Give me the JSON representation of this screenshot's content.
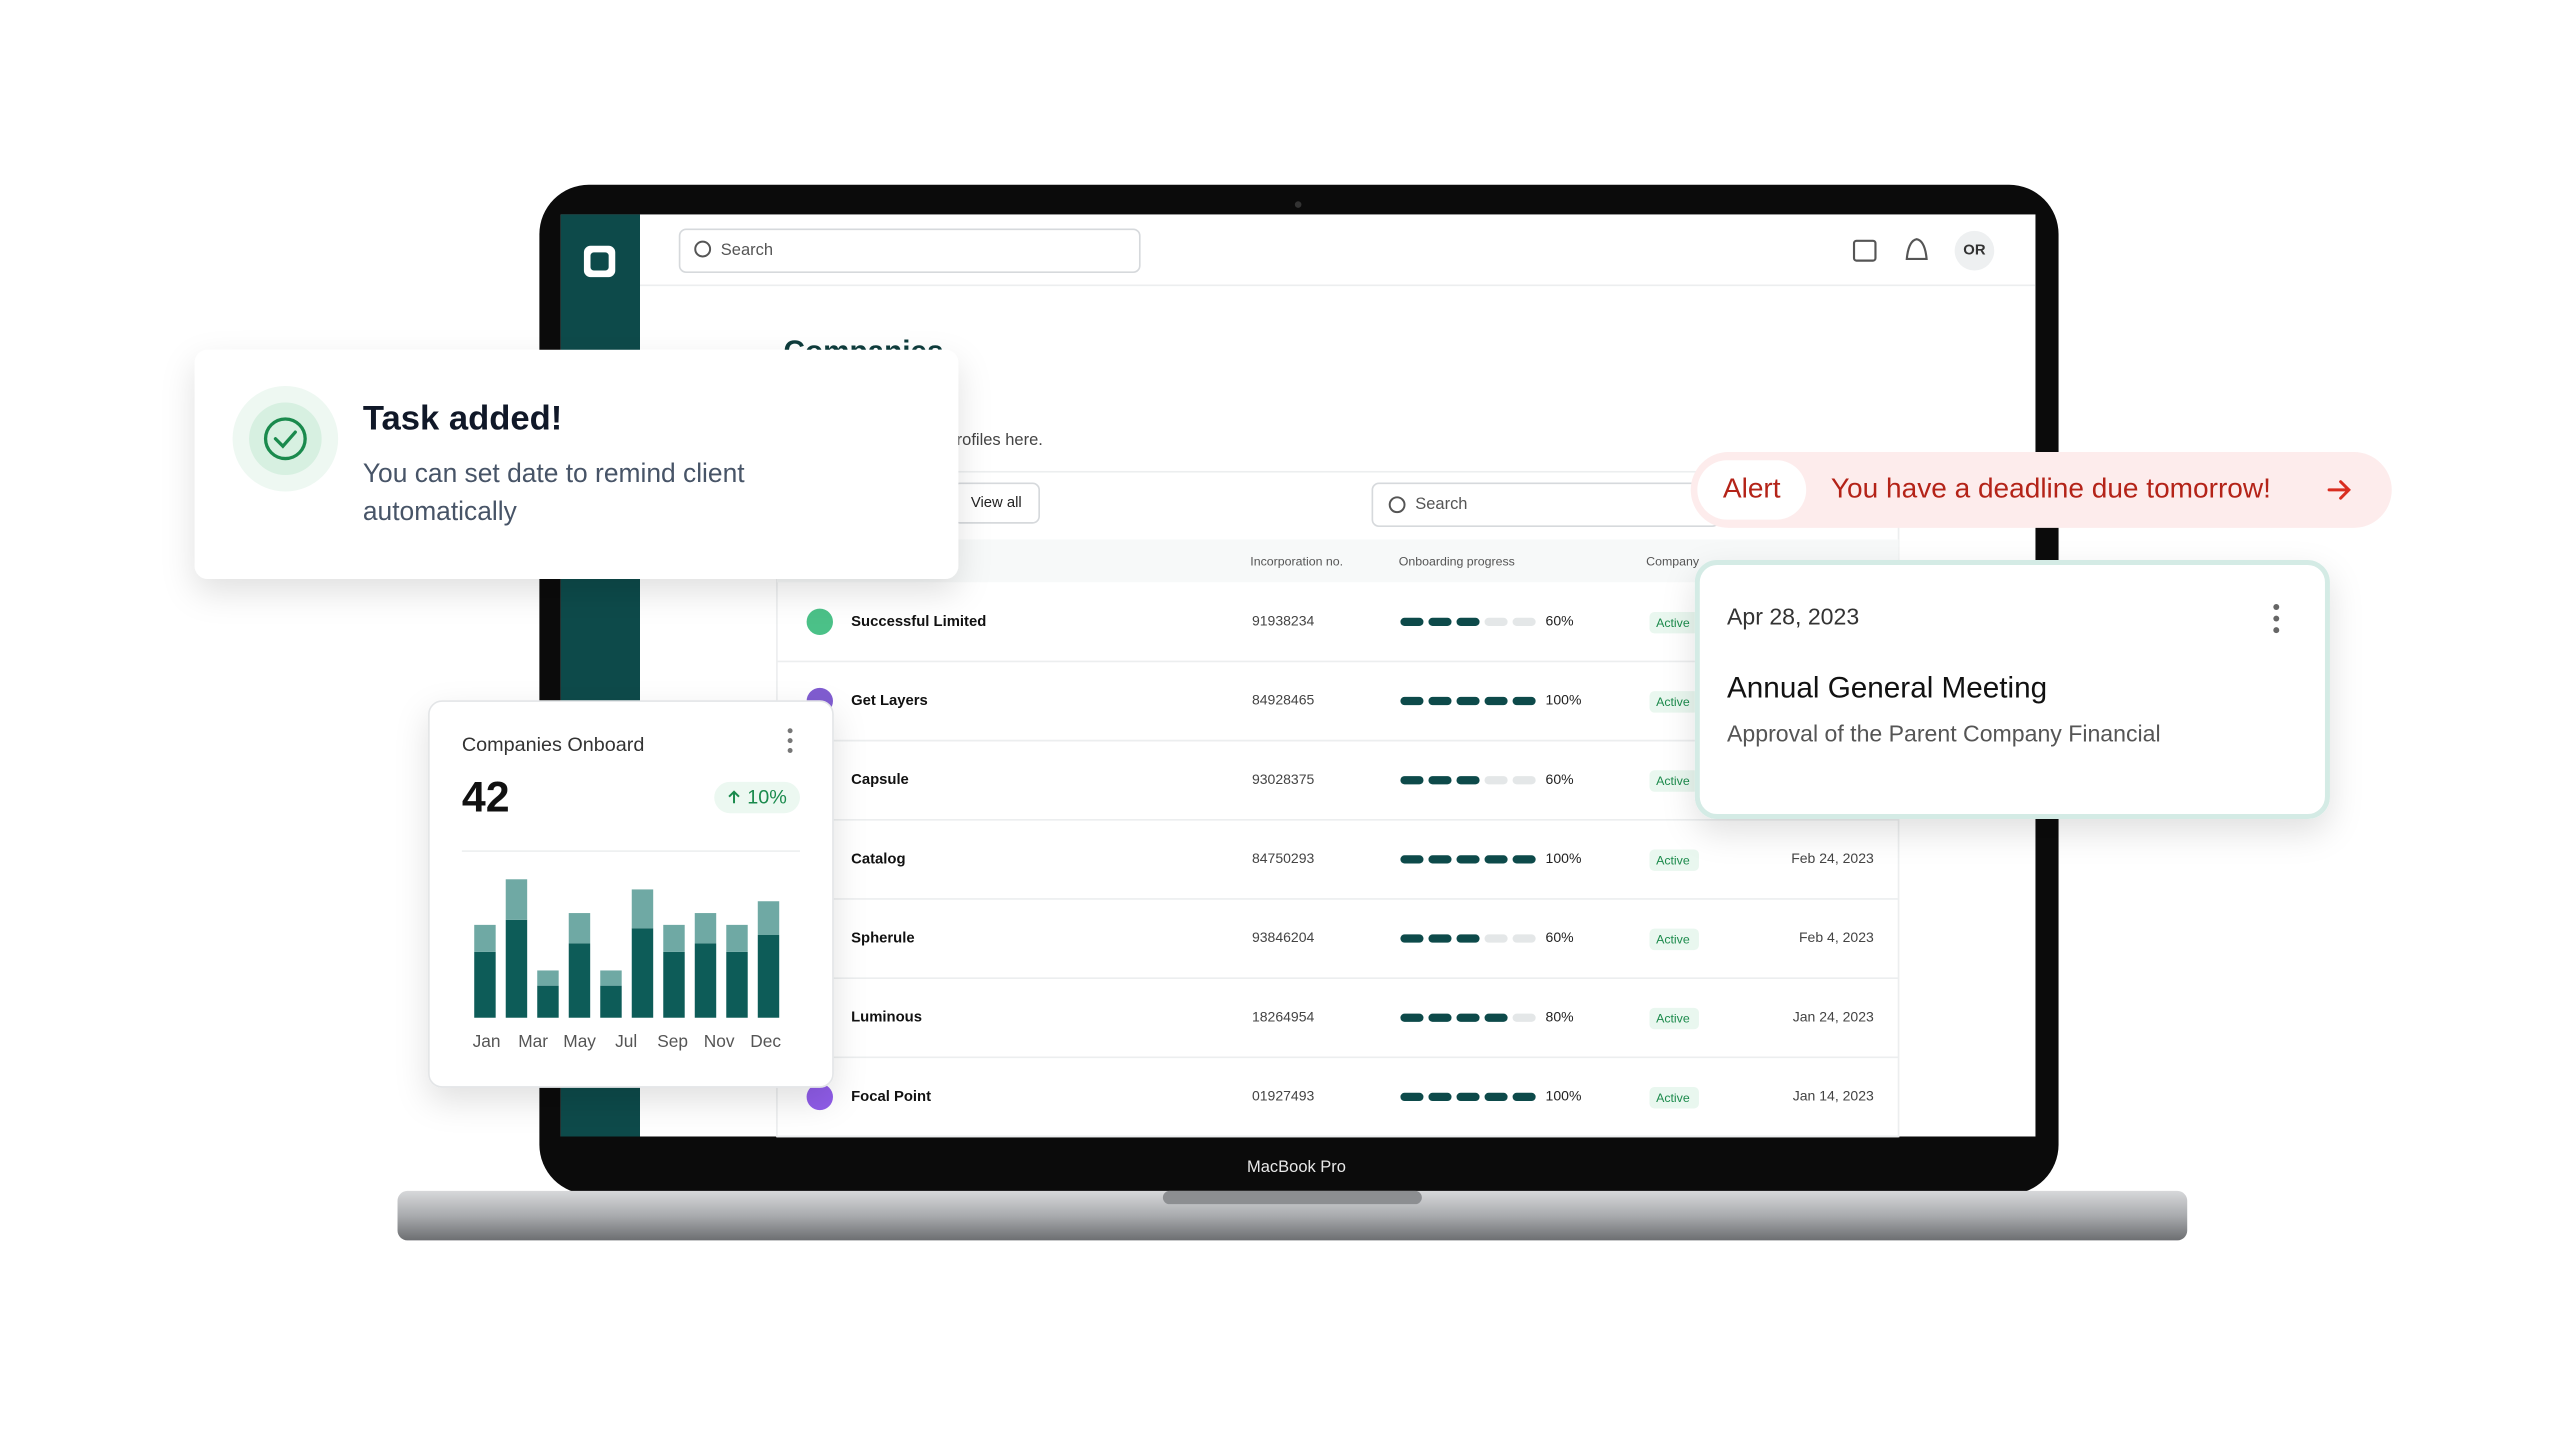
{
  "app": {
    "search_placeholder": "Search",
    "avatar": "OR",
    "title": "Companies",
    "subtitle": "rofiles here.",
    "view_all": "View all",
    "table_search_placeholder": "Search",
    "laptop_label": "MacBook Pro",
    "table": {
      "headers": [
        "Incorporation no.",
        "Onboarding progress",
        "Company"
      ],
      "rows": [
        {
          "name": "Successful Limited",
          "number": "91938234",
          "progress": {
            "value": 60,
            "label": "60%"
          },
          "status": "Active",
          "date": null
        },
        {
          "name": "Get Layers",
          "number": "84928465",
          "progress": {
            "value": 100,
            "label": "100%"
          },
          "status": "Active",
          "date": null
        },
        {
          "name": "Capsule",
          "number": "93028375",
          "progress": {
            "value": 60,
            "label": "60%"
          },
          "status": "Active",
          "date": null
        },
        {
          "name": "Catalog",
          "number": "84750293",
          "progress": {
            "value": 100,
            "label": "100%"
          },
          "status": "Active",
          "date": "Feb 24, 2023"
        },
        {
          "name": "Spherule",
          "number": "93846204",
          "progress": {
            "value": 60,
            "label": "60%"
          },
          "status": "Active",
          "date": "Feb 4, 2023"
        },
        {
          "name": "Luminous",
          "number": "18264954",
          "progress": {
            "value": 80,
            "label": "80%"
          },
          "status": "Active",
          "date": "Jan 24, 2023"
        },
        {
          "name": "Focal Point",
          "number": "01927493",
          "progress": {
            "value": 100,
            "label": "100%"
          },
          "status": "Active",
          "date": "Jan 14, 2023"
        }
      ]
    }
  },
  "toast": {
    "title": "Task added!",
    "lines": [
      "You can set date to remind client",
      "automatically"
    ]
  },
  "alert": {
    "tag": "Alert",
    "message": "You have a deadline due tomorrow!"
  },
  "event": {
    "date": "Apr 28, 2023",
    "title": "Annual General Meeting",
    "description": "Approval of the Parent Company Financial"
  },
  "onboard_card": {
    "title": "Companies Onboard",
    "count": "42",
    "change": "10%",
    "chart": {
      "type": "bar",
      "stacked": true,
      "x_labels": [
        "Jan",
        "Mar",
        "May",
        "Jul",
        "Sep",
        "Nov",
        "Dec"
      ],
      "ylim": [
        0,
        85
      ],
      "series": [
        {
          "color": "#0d5c58",
          "values": [
            39,
            58,
            19,
            44,
            19,
            53,
            39,
            44,
            39,
            49
          ]
        },
        {
          "color": "#6fa9a4",
          "values": [
            16,
            24,
            9,
            18,
            9,
            23,
            16,
            18,
            16,
            20
          ]
        }
      ]
    }
  }
}
